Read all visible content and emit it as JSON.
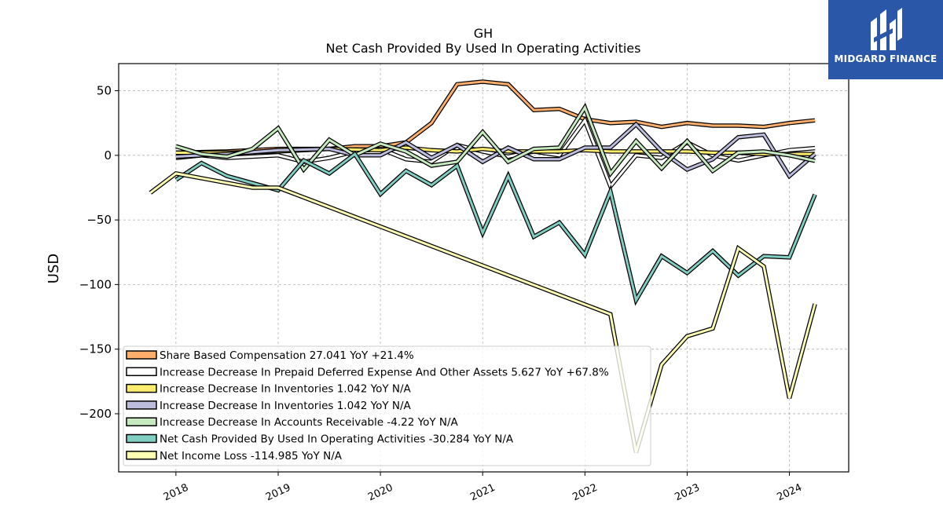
{
  "chart_data": {
    "type": "line",
    "title": "GH",
    "subtitle": "Net Cash Provided By Used In Operating Activities",
    "ylabel": "USD",
    "xlabel": "",
    "ylim": [
      -245,
      71
    ],
    "xlim": [
      2017.44,
      2024.58
    ],
    "yticks": [
      50,
      0,
      -50,
      -100,
      -150,
      -200
    ],
    "ytick_labels": [
      "50",
      "0",
      "−50",
      "−100",
      "−150",
      "−200"
    ],
    "xticks": [
      2018,
      2019,
      2020,
      2021,
      2022,
      2023,
      2024
    ],
    "xtick_labels": [
      "2018",
      "2019",
      "2020",
      "2021",
      "2022",
      "2023",
      "2024"
    ],
    "grid": true,
    "legend_position": "lower-left",
    "series": [
      {
        "name": "Share Based Compensation  27.041 YoY +21.4%",
        "color": "#fdae6b",
        "points": [
          [
            2018.0,
            2
          ],
          [
            2018.5,
            3
          ],
          [
            2019.0,
            5
          ],
          [
            2019.5,
            5
          ],
          [
            2019.75,
            7
          ],
          [
            2020.0,
            7
          ],
          [
            2020.25,
            10
          ],
          [
            2020.5,
            25
          ],
          [
            2020.75,
            55
          ],
          [
            2021.0,
            57
          ],
          [
            2021.25,
            55
          ],
          [
            2021.5,
            35
          ],
          [
            2021.75,
            36
          ],
          [
            2022.0,
            28
          ],
          [
            2022.25,
            25
          ],
          [
            2022.5,
            26
          ],
          [
            2022.75,
            22
          ],
          [
            2023.0,
            25
          ],
          [
            2023.25,
            23
          ],
          [
            2023.5,
            23
          ],
          [
            2023.75,
            22
          ],
          [
            2024.0,
            25
          ],
          [
            2024.25,
            27.041
          ]
        ]
      },
      {
        "name": "Increase Decrease In Prepaid Deferred Expense And Other Assets  5.627 YoY +67.8%",
        "color": "#ffffff",
        "points": [
          [
            2018.0,
            -2
          ],
          [
            2018.25,
            0
          ],
          [
            2018.5,
            -2
          ],
          [
            2019.0,
            0
          ],
          [
            2019.25,
            -5
          ],
          [
            2019.5,
            -2
          ],
          [
            2019.75,
            3
          ],
          [
            2020.0,
            5
          ],
          [
            2020.25,
            -3
          ],
          [
            2020.5,
            -5
          ],
          [
            2020.75,
            8
          ],
          [
            2021.0,
            3
          ],
          [
            2021.25,
            -1
          ],
          [
            2021.5,
            3
          ],
          [
            2021.75,
            0
          ],
          [
            2022.0,
            27
          ],
          [
            2022.25,
            -24
          ],
          [
            2022.5,
            0
          ],
          [
            2022.75,
            -2
          ],
          [
            2023.0,
            10
          ],
          [
            2023.25,
            0
          ],
          [
            2023.5,
            -4
          ],
          [
            2023.75,
            0
          ],
          [
            2024.0,
            4
          ],
          [
            2024.25,
            5.627
          ]
        ]
      },
      {
        "name": "Increase Decrease In Inventories  1.042 YoY N/A",
        "color": "#ffed6f",
        "points": [
          [
            2018.0,
            2
          ],
          [
            2018.5,
            2
          ],
          [
            2019.0,
            3
          ],
          [
            2019.5,
            5
          ],
          [
            2020.0,
            4
          ],
          [
            2020.25,
            6
          ],
          [
            2020.5,
            4
          ],
          [
            2020.75,
            3
          ],
          [
            2021.0,
            5
          ],
          [
            2021.25,
            3
          ],
          [
            2021.5,
            3
          ],
          [
            2021.75,
            3
          ],
          [
            2022.0,
            4
          ],
          [
            2022.25,
            3
          ],
          [
            2022.5,
            3
          ],
          [
            2022.75,
            3
          ],
          [
            2023.0,
            3
          ],
          [
            2023.25,
            2
          ],
          [
            2023.5,
            2
          ],
          [
            2023.75,
            1
          ],
          [
            2024.0,
            1
          ],
          [
            2024.25,
            1.042
          ]
        ]
      },
      {
        "name": "Increase Decrease In Inventories  1.042 YoY N/A",
        "color": "#bcbddc",
        "points": [
          [
            2018.0,
            -1
          ],
          [
            2018.25,
            0
          ],
          [
            2018.5,
            1
          ],
          [
            2019.0,
            4
          ],
          [
            2019.5,
            5
          ],
          [
            2019.75,
            0
          ],
          [
            2020.0,
            0
          ],
          [
            2020.25,
            10
          ],
          [
            2020.5,
            -2
          ],
          [
            2020.75,
            8
          ],
          [
            2021.0,
            -5
          ],
          [
            2021.25,
            6
          ],
          [
            2021.5,
            -3
          ],
          [
            2021.75,
            -3
          ],
          [
            2022.0,
            6
          ],
          [
            2022.25,
            6
          ],
          [
            2022.5,
            24
          ],
          [
            2022.75,
            3
          ],
          [
            2023.0,
            -11
          ],
          [
            2023.25,
            -3
          ],
          [
            2023.5,
            14
          ],
          [
            2023.75,
            16
          ],
          [
            2024.0,
            -16
          ],
          [
            2024.25,
            1.042
          ]
        ]
      },
      {
        "name": "Increase Decrease In Accounts Receivable  -4.22 YoY N/A",
        "color": "#c7e9c0",
        "points": [
          [
            2018.0,
            7
          ],
          [
            2018.25,
            1
          ],
          [
            2018.5,
            -1
          ],
          [
            2018.75,
            5
          ],
          [
            2019.0,
            21
          ],
          [
            2019.25,
            -11
          ],
          [
            2019.5,
            12
          ],
          [
            2019.75,
            0
          ],
          [
            2020.0,
            9
          ],
          [
            2020.25,
            3
          ],
          [
            2020.5,
            -8
          ],
          [
            2020.75,
            -5
          ],
          [
            2021.0,
            18
          ],
          [
            2021.25,
            -5
          ],
          [
            2021.5,
            5
          ],
          [
            2021.75,
            6
          ],
          [
            2022.0,
            37
          ],
          [
            2022.25,
            -14
          ],
          [
            2022.5,
            11
          ],
          [
            2022.75,
            -10
          ],
          [
            2023.0,
            11
          ],
          [
            2023.25,
            -12
          ],
          [
            2023.5,
            2
          ],
          [
            2023.75,
            3
          ],
          [
            2024.0,
            0
          ],
          [
            2024.25,
            -4.22
          ]
        ]
      },
      {
        "name": "Net Cash Provided By Used In Operating Activities  -30.284 YoY N/A",
        "color": "#80cdc1",
        "points": [
          [
            2018.0,
            -19
          ],
          [
            2018.25,
            -6
          ],
          [
            2018.5,
            -16
          ],
          [
            2019.0,
            -27
          ],
          [
            2019.25,
            -4
          ],
          [
            2019.5,
            -14
          ],
          [
            2019.75,
            1
          ],
          [
            2020.0,
            -30
          ],
          [
            2020.25,
            -12
          ],
          [
            2020.5,
            -23
          ],
          [
            2020.75,
            -8
          ],
          [
            2021.0,
            -60
          ],
          [
            2021.25,
            -16
          ],
          [
            2021.5,
            -63
          ],
          [
            2021.75,
            -52
          ],
          [
            2022.0,
            -77
          ],
          [
            2022.25,
            -28
          ],
          [
            2022.5,
            -112
          ],
          [
            2022.75,
            -78
          ],
          [
            2023.0,
            -91
          ],
          [
            2023.25,
            -74
          ],
          [
            2023.5,
            -93
          ],
          [
            2023.75,
            -78
          ],
          [
            2024.0,
            -79
          ],
          [
            2024.25,
            -30.284
          ]
        ]
      },
      {
        "name": "Net Income Loss  -114.985 YoY N/A",
        "color": "#ffffb3",
        "points": [
          [
            2017.75,
            -29
          ],
          [
            2018.0,
            -14
          ],
          [
            2018.75,
            -25
          ],
          [
            2019.0,
            -25
          ],
          [
            2022.25,
            -123
          ],
          [
            2022.5,
            -230
          ],
          [
            2022.75,
            -162
          ],
          [
            2023.0,
            -140
          ],
          [
            2023.25,
            -134
          ],
          [
            2023.5,
            -72
          ],
          [
            2023.75,
            -86
          ],
          [
            2024.0,
            -188
          ],
          [
            2024.25,
            -114.985
          ]
        ]
      }
    ]
  },
  "logo": {
    "text": "MIDGARD FINANCE",
    "icon": "midgard-logo-icon",
    "color": "#2b57a8"
  }
}
